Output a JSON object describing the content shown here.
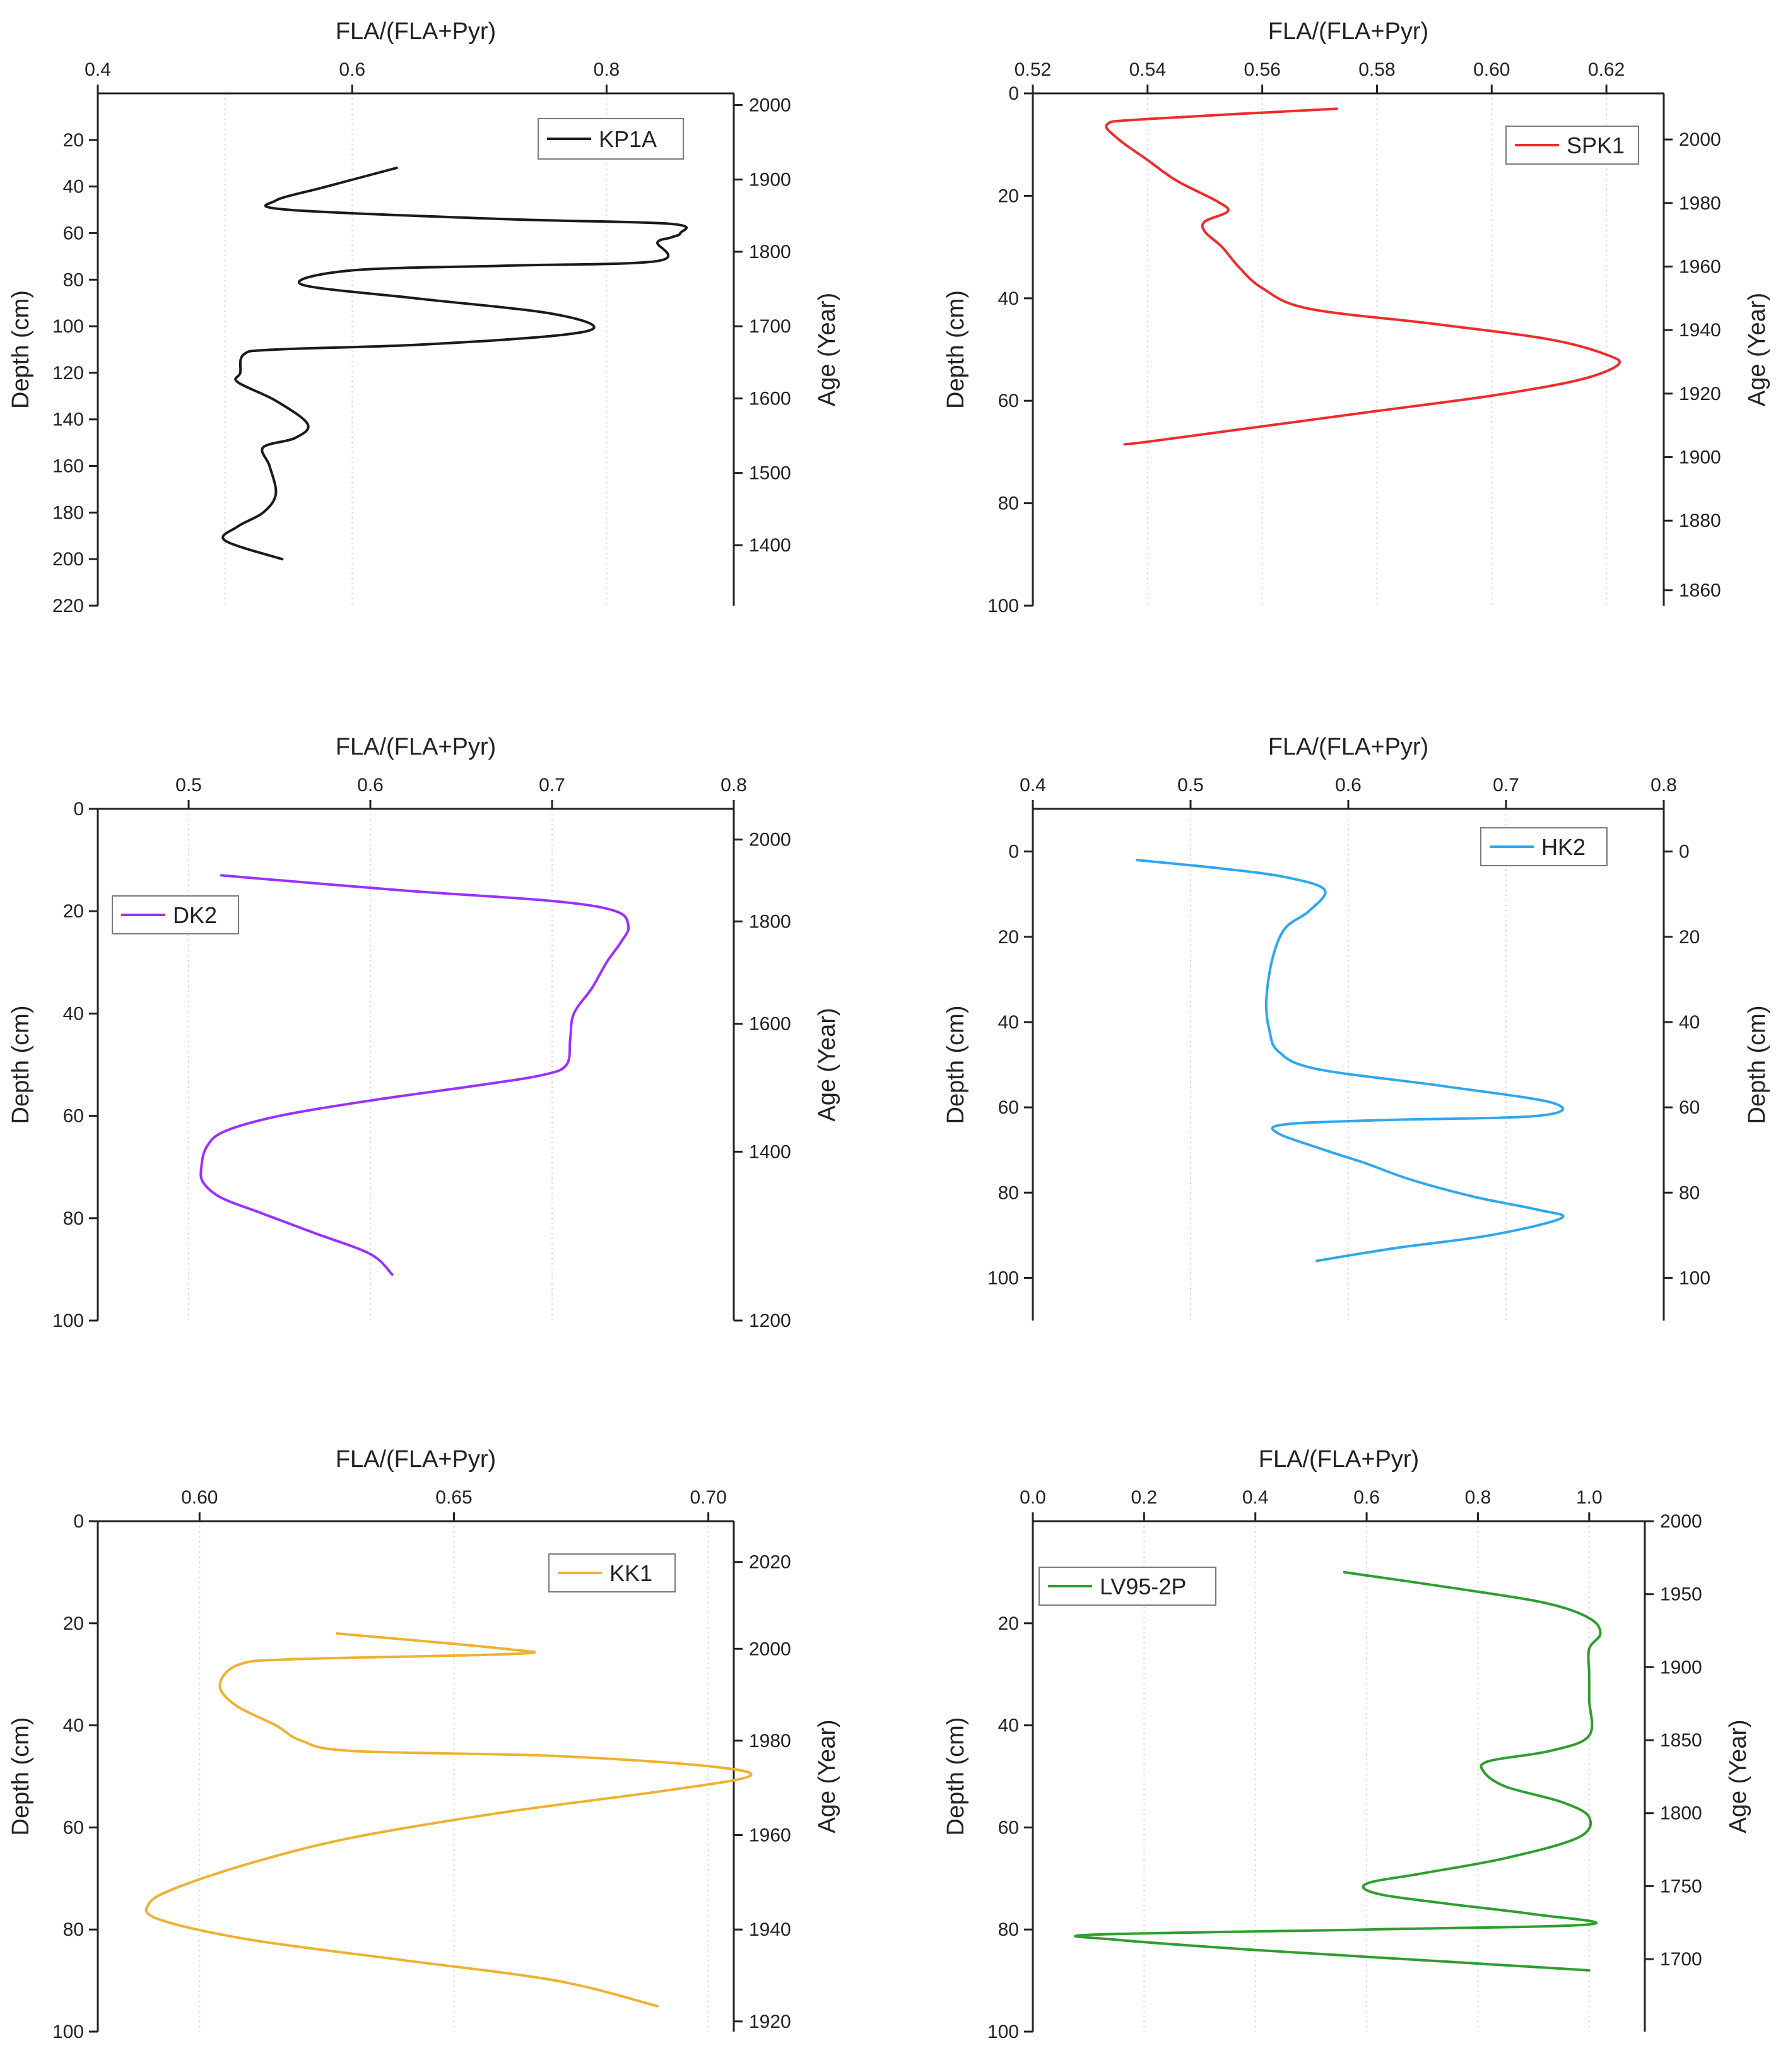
{
  "chart_data": [
    {
      "type": "line",
      "series_name": "KP1A",
      "color": "#1a1a1a",
      "top_xlabel": "FLA/(FLA+Pyr)",
      "xlim": [
        0.4,
        0.9
      ],
      "xticks": [
        0.4,
        0.6,
        0.8
      ],
      "xtick_labels": [
        "0.4",
        "0.6",
        "0.8"
      ],
      "grid_x": [
        0.5,
        0.6,
        0.8
      ],
      "ylabel": "Depth (cm)",
      "ylim": [
        0,
        220
      ],
      "yticks": [
        20,
        40,
        60,
        80,
        100,
        120,
        140,
        160,
        180,
        200,
        220
      ],
      "ytick_labels": [
        "20",
        "40",
        "60",
        "80",
        "100",
        "120",
        "140",
        "160",
        "180",
        "200",
        "220"
      ],
      "right_label": "Age (Year)",
      "right_ticks": [
        {
          "label": "2000",
          "depth": 5
        },
        {
          "label": "1900",
          "depth": 37
        },
        {
          "label": "1800",
          "depth": 68
        },
        {
          "label": "1700",
          "depth": 100
        },
        {
          "label": "1600",
          "depth": 131
        },
        {
          "label": "1500",
          "depth": 163
        },
        {
          "label": "1400",
          "depth": 194
        }
      ],
      "legend": {
        "label": "KP1A",
        "position": "top-right"
      },
      "points": [
        [
          0.635,
          32
        ],
        [
          0.58,
          40
        ],
        [
          0.54,
          46
        ],
        [
          0.55,
          50
        ],
        [
          0.72,
          54
        ],
        [
          0.85,
          56
        ],
        [
          0.858,
          60
        ],
        [
          0.85,
          62
        ],
        [
          0.84,
          64
        ],
        [
          0.84,
          72
        ],
        [
          0.72,
          74
        ],
        [
          0.6,
          76
        ],
        [
          0.56,
          82
        ],
        [
          0.65,
          88
        ],
        [
          0.75,
          94
        ],
        [
          0.79,
          100
        ],
        [
          0.76,
          104
        ],
        [
          0.65,
          108
        ],
        [
          0.54,
          110
        ],
        [
          0.515,
          112
        ],
        [
          0.512,
          120
        ],
        [
          0.51,
          124
        ],
        [
          0.54,
          132
        ],
        [
          0.565,
          142
        ],
        [
          0.555,
          148
        ],
        [
          0.53,
          152
        ],
        [
          0.535,
          160
        ],
        [
          0.54,
          172
        ],
        [
          0.53,
          180
        ],
        [
          0.51,
          186
        ],
        [
          0.5,
          192
        ],
        [
          0.545,
          200
        ]
      ]
    },
    {
      "type": "line",
      "series_name": "SPK1",
      "color": "#ef2b2b",
      "top_xlabel": "FLA/(FLA+Pyr)",
      "xlim": [
        0.52,
        0.63
      ],
      "xticks": [
        0.52,
        0.54,
        0.56,
        0.58,
        0.6,
        0.62
      ],
      "xtick_labels": [
        "0.52",
        "0.54",
        "0.56",
        "0.58",
        "0.60",
        "0.62"
      ],
      "grid_x": [
        0.54,
        0.56,
        0.58,
        0.6,
        0.62
      ],
      "ylabel": "Depth (cm)",
      "ylim": [
        0,
        100
      ],
      "yticks": [
        0,
        20,
        40,
        60,
        80,
        100
      ],
      "ytick_labels": [
        "0",
        "20",
        "40",
        "60",
        "80",
        "100"
      ],
      "right_label": "Age (Year)",
      "right_ticks": [
        {
          "label": "2000",
          "depth": 9
        },
        {
          "label": "1980",
          "depth": 21.4
        },
        {
          "label": "1960",
          "depth": 33.8
        },
        {
          "label": "1940",
          "depth": 46.2
        },
        {
          "label": "1920",
          "depth": 58.6
        },
        {
          "label": "1900",
          "depth": 71
        },
        {
          "label": "1880",
          "depth": 83.4
        },
        {
          "label": "1860",
          "depth": 97
        }
      ],
      "legend": {
        "label": "SPK1",
        "position": "top-right"
      },
      "points": [
        [
          0.573,
          3
        ],
        [
          0.54,
          5
        ],
        [
          0.533,
          6
        ],
        [
          0.535,
          9
        ],
        [
          0.54,
          13
        ],
        [
          0.545,
          17
        ],
        [
          0.552,
          21
        ],
        [
          0.554,
          23
        ],
        [
          0.55,
          25
        ],
        [
          0.55,
          27
        ],
        [
          0.553,
          30
        ],
        [
          0.556,
          34
        ],
        [
          0.56,
          38
        ],
        [
          0.568,
          42
        ],
        [
          0.59,
          45
        ],
        [
          0.61,
          48
        ],
        [
          0.62,
          51
        ],
        [
          0.622,
          53
        ],
        [
          0.615,
          56
        ],
        [
          0.6,
          59
        ],
        [
          0.58,
          62
        ],
        [
          0.56,
          65
        ],
        [
          0.54,
          68
        ],
        [
          0.536,
          68.5
        ]
      ]
    },
    {
      "type": "line",
      "series_name": "DK2",
      "color": "#9b30ff",
      "top_xlabel": "FLA/(FLA+Pyr)",
      "xlim": [
        0.45,
        0.8
      ],
      "xticks": [
        0.5,
        0.6,
        0.7,
        0.8
      ],
      "xtick_labels": [
        "0.5",
        "0.6",
        "0.7",
        "0.8"
      ],
      "grid_x": [
        0.5,
        0.6,
        0.7
      ],
      "ylabel": "Depth (cm)",
      "ylim": [
        0,
        100
      ],
      "yticks": [
        0,
        20,
        40,
        60,
        80,
        100
      ],
      "ytick_labels": [
        "0",
        "20",
        "40",
        "60",
        "80",
        "100"
      ],
      "right_label": "Age (Year)",
      "right_ticks": [
        {
          "label": "2000",
          "depth": 6
        },
        {
          "label": "1800",
          "depth": 22
        },
        {
          "label": "1600",
          "depth": 42
        },
        {
          "label": "1400",
          "depth": 67
        },
        {
          "label": "1200",
          "depth": 100
        }
      ],
      "legend": {
        "label": "DK2",
        "position": "top-left"
      },
      "points": [
        [
          0.518,
          13
        ],
        [
          0.62,
          16
        ],
        [
          0.7,
          18
        ],
        [
          0.735,
          20
        ],
        [
          0.742,
          23
        ],
        [
          0.738,
          26
        ],
        [
          0.73,
          30
        ],
        [
          0.722,
          35
        ],
        [
          0.712,
          40
        ],
        [
          0.71,
          45
        ],
        [
          0.708,
          50
        ],
        [
          0.695,
          52
        ],
        [
          0.66,
          54
        ],
        [
          0.6,
          57
        ],
        [
          0.55,
          60
        ],
        [
          0.52,
          63
        ],
        [
          0.51,
          66
        ],
        [
          0.507,
          70
        ],
        [
          0.508,
          73
        ],
        [
          0.518,
          76
        ],
        [
          0.54,
          79
        ],
        [
          0.57,
          83
        ],
        [
          0.6,
          87
        ],
        [
          0.612,
          91
        ]
      ]
    },
    {
      "type": "line",
      "series_name": "HK2",
      "color": "#2ea7f0",
      "top_xlabel": "FLA/(FLA+Pyr)",
      "xlim": [
        0.4,
        0.8
      ],
      "xticks": [
        0.4,
        0.5,
        0.6,
        0.7,
        0.8
      ],
      "xtick_labels": [
        "0.4",
        "0.5",
        "0.6",
        "0.7",
        "0.8"
      ],
      "grid_x": [
        0.5,
        0.6,
        0.7
      ],
      "ylabel": "Depth (cm)",
      "ylim": [
        -10,
        110
      ],
      "yticks": [
        0,
        20,
        40,
        60,
        80,
        100
      ],
      "ytick_labels": [
        "0",
        "20",
        "40",
        "60",
        "80",
        "100"
      ],
      "right_label": "Depth (cm)",
      "right_ticks": [
        {
          "label": "0",
          "depth": 0
        },
        {
          "label": "20",
          "depth": 20
        },
        {
          "label": "40",
          "depth": 40
        },
        {
          "label": "60",
          "depth": 60
        },
        {
          "label": "80",
          "depth": 80
        },
        {
          "label": "100",
          "depth": 100
        }
      ],
      "legend": {
        "label": "HK2",
        "position": "top-right"
      },
      "points": [
        [
          0.466,
          2
        ],
        [
          0.52,
          4
        ],
        [
          0.56,
          6
        ],
        [
          0.585,
          9
        ],
        [
          0.575,
          14
        ],
        [
          0.56,
          18
        ],
        [
          0.552,
          25
        ],
        [
          0.548,
          35
        ],
        [
          0.55,
          42
        ],
        [
          0.556,
          47
        ],
        [
          0.58,
          51
        ],
        [
          0.66,
          55
        ],
        [
          0.73,
          59
        ],
        [
          0.72,
          62
        ],
        [
          0.62,
          63
        ],
        [
          0.56,
          64
        ],
        [
          0.555,
          66
        ],
        [
          0.585,
          70
        ],
        [
          0.61,
          73
        ],
        [
          0.64,
          77
        ],
        [
          0.68,
          81
        ],
        [
          0.72,
          84
        ],
        [
          0.735,
          86
        ],
        [
          0.69,
          90
        ],
        [
          0.63,
          93
        ],
        [
          0.58,
          96
        ]
      ]
    },
    {
      "type": "line",
      "series_name": "KK1",
      "color": "#f0b030",
      "top_xlabel": "FLA/(FLA+Pyr)",
      "xlim": [
        0.58,
        0.705
      ],
      "xticks": [
        0.6,
        0.65,
        0.7
      ],
      "xtick_labels": [
        "0.60",
        "0.65",
        "0.70"
      ],
      "grid_x": [
        0.6,
        0.65,
        0.7
      ],
      "ylabel": "Depth (cm)",
      "ylim": [
        0,
        100
      ],
      "yticks": [
        0,
        20,
        40,
        60,
        80,
        100
      ],
      "ytick_labels": [
        "0",
        "20",
        "40",
        "60",
        "80",
        "100"
      ],
      "right_label": "Age (Year)",
      "right_ticks": [
        {
          "label": "2020",
          "depth": 8
        },
        {
          "label": "2000",
          "depth": 25
        },
        {
          "label": "1980",
          "depth": 43
        },
        {
          "label": "1960",
          "depth": 61.5
        },
        {
          "label": "1940",
          "depth": 80
        },
        {
          "label": "1920",
          "depth": 98
        }
      ],
      "legend": {
        "label": "KK1",
        "position": "top-right"
      },
      "points": [
        [
          0.627,
          22
        ],
        [
          0.66,
          25
        ],
        [
          0.662,
          26
        ],
        [
          0.62,
          27
        ],
        [
          0.608,
          28
        ],
        [
          0.604,
          32
        ],
        [
          0.607,
          36
        ],
        [
          0.615,
          40
        ],
        [
          0.62,
          43
        ],
        [
          0.63,
          45
        ],
        [
          0.67,
          46
        ],
        [
          0.7,
          48
        ],
        [
          0.708,
          50
        ],
        [
          0.69,
          53
        ],
        [
          0.66,
          57
        ],
        [
          0.63,
          62
        ],
        [
          0.61,
          67
        ],
        [
          0.595,
          72
        ],
        [
          0.59,
          75
        ],
        [
          0.592,
          78
        ],
        [
          0.61,
          82
        ],
        [
          0.64,
          86
        ],
        [
          0.67,
          90
        ],
        [
          0.69,
          95
        ]
      ]
    },
    {
      "type": "line",
      "series_name": "LV95-2P",
      "color": "#2e9e2e",
      "top_xlabel": "FLA/(FLA+Pyr)",
      "xlim": [
        0.0,
        1.1
      ],
      "xticks": [
        0.0,
        0.2,
        0.4,
        0.6,
        0.8,
        1.0
      ],
      "xtick_labels": [
        "0.0",
        "0.2",
        "0.4",
        "0.6",
        "0.8",
        "1.0"
      ],
      "grid_x": [
        0.2,
        0.4,
        0.6,
        0.8,
        1.0
      ],
      "ylabel": "Depth (cm)",
      "ylim": [
        0,
        100
      ],
      "yticks": [
        20,
        40,
        60,
        80,
        100
      ],
      "ytick_labels": [
        "20",
        "40",
        "60",
        "80",
        "100"
      ],
      "right_label": "Age (Year)",
      "right_ticks": [
        {
          "label": "2000",
          "depth": 0
        },
        {
          "label": "1950",
          "depth": 14.3
        },
        {
          "label": "1900",
          "depth": 28.6
        },
        {
          "label": "1850",
          "depth": 42.9
        },
        {
          "label": "1800",
          "depth": 57.2
        },
        {
          "label": "1750",
          "depth": 71.5
        },
        {
          "label": "1700",
          "depth": 85.8
        }
      ],
      "legend": {
        "label": "LV95-2P",
        "position": "top-left"
      },
      "points": [
        [
          0.56,
          10
        ],
        [
          0.75,
          13
        ],
        [
          0.92,
          16
        ],
        [
          1.0,
          19
        ],
        [
          1.02,
          22
        ],
        [
          1.0,
          25
        ],
        [
          1.0,
          30
        ],
        [
          1.0,
          35
        ],
        [
          1.0,
          42
        ],
        [
          0.93,
          45
        ],
        [
          0.82,
          47
        ],
        [
          0.81,
          49
        ],
        [
          0.85,
          52
        ],
        [
          0.95,
          55
        ],
        [
          1.0,
          58
        ],
        [
          0.98,
          62
        ],
        [
          0.85,
          66
        ],
        [
          0.7,
          69
        ],
        [
          0.6,
          71
        ],
        [
          0.62,
          73
        ],
        [
          0.75,
          75
        ],
        [
          0.9,
          77
        ],
        [
          1.0,
          79
        ],
        [
          0.6,
          80
        ],
        [
          0.11,
          81
        ],
        [
          0.15,
          82
        ],
        [
          0.4,
          84
        ],
        [
          0.7,
          86
        ],
        [
          1.0,
          88
        ]
      ]
    }
  ]
}
